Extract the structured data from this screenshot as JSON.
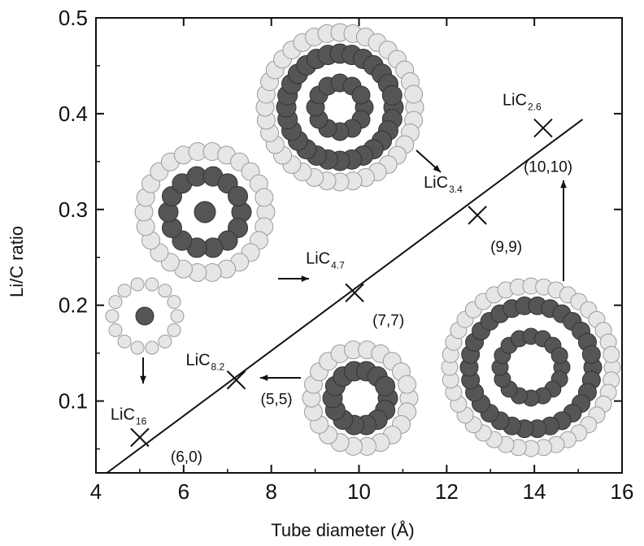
{
  "chart_data": {
    "type": "scatter",
    "title": "",
    "xlabel": "Tube diameter (Å)",
    "ylabel": "Li/C ratio",
    "xlim": [
      4,
      16
    ],
    "ylim": [
      0.025,
      0.5
    ],
    "xticks": [
      "4",
      "6",
      "8",
      "10",
      "12",
      "14",
      "16"
    ],
    "yticks": [
      "0.1",
      "0.2",
      "0.3",
      "0.4",
      "0.5"
    ],
    "grid": false,
    "points": [
      {
        "x": 5.0,
        "y": 0.062,
        "tube": "(6,0)",
        "compound": "LiC",
        "subscript": "16"
      },
      {
        "x": 7.2,
        "y": 0.122,
        "tube": "(5,5)",
        "compound": "LiC",
        "subscript": "8.2"
      },
      {
        "x": 9.9,
        "y": 0.213,
        "tube": "(7,7)",
        "compound": "LiC",
        "subscript": "4.7"
      },
      {
        "x": 12.7,
        "y": 0.294,
        "tube": "(9,9)",
        "compound": "LiC",
        "subscript": "3.4"
      },
      {
        "x": 14.2,
        "y": 0.385,
        "tube": "(10,10)",
        "compound": "LiC",
        "subscript": "2.6"
      }
    ],
    "fit_line": {
      "x": [
        4.25,
        15.1
      ],
      "y": [
        0.025,
        0.394
      ]
    }
  }
}
